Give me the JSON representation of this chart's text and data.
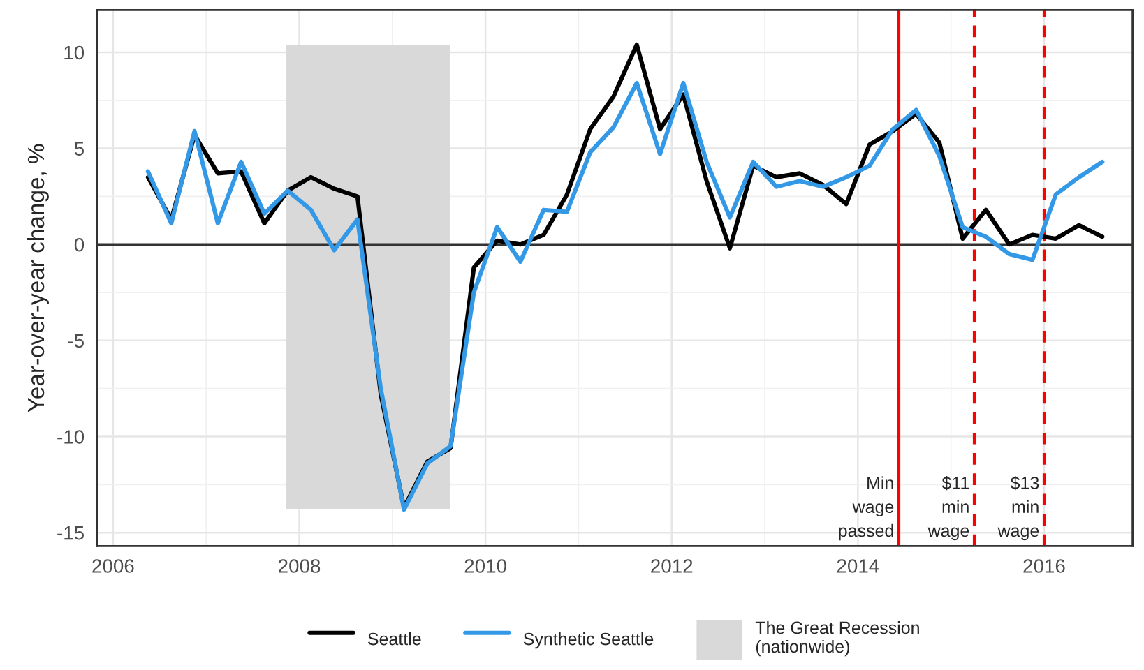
{
  "chart_data": {
    "type": "line",
    "ylabel": "Year-over-year change, %",
    "x": [
      2006.375,
      2006.625,
      2006.875,
      2007.125,
      2007.375,
      2007.625,
      2007.875,
      2008.125,
      2008.375,
      2008.625,
      2008.875,
      2009.125,
      2009.375,
      2009.625,
      2009.875,
      2010.125,
      2010.375,
      2010.625,
      2010.875,
      2011.125,
      2011.375,
      2011.625,
      2011.875,
      2012.125,
      2012.375,
      2012.625,
      2012.875,
      2013.125,
      2013.375,
      2013.625,
      2013.875,
      2014.125,
      2014.375,
      2014.625,
      2014.875,
      2015.125,
      2015.375,
      2015.625,
      2015.875,
      2016.125,
      2016.375,
      2016.625
    ],
    "series": [
      {
        "name": "Seattle",
        "color": "#000000",
        "values": [
          3.5,
          1.3,
          5.7,
          3.7,
          3.8,
          1.1,
          2.8,
          3.5,
          2.9,
          2.5,
          -7.8,
          -13.7,
          -11.3,
          -10.6,
          -1.2,
          0.2,
          0.0,
          0.5,
          2.6,
          6.0,
          7.7,
          10.4,
          6.0,
          7.8,
          3.3,
          -0.2,
          4.1,
          3.5,
          3.7,
          3.1,
          2.1,
          5.2,
          5.9,
          6.8,
          5.3,
          0.3,
          1.8,
          0.0,
          0.5,
          0.3,
          1.0,
          0.4
        ]
      },
      {
        "name": "Synthetic Seattle",
        "color": "#3399e6",
        "values": [
          3.8,
          1.1,
          5.9,
          1.1,
          4.3,
          1.6,
          2.8,
          1.8,
          -0.3,
          1.3,
          -7.5,
          -13.8,
          -11.4,
          -10.5,
          -2.5,
          0.9,
          -0.9,
          1.8,
          1.7,
          4.8,
          6.1,
          8.4,
          4.7,
          8.4,
          4.3,
          1.4,
          4.3,
          3.0,
          3.3,
          3.0,
          3.5,
          4.1,
          6.0,
          7.0,
          4.6,
          0.9,
          0.4,
          -0.5,
          -0.8,
          2.6,
          3.5,
          4.3
        ]
      }
    ],
    "xlim": [
      2005.83,
      2016.95
    ],
    "ylim": [
      -15.7,
      12.2
    ],
    "xticks": [
      2006,
      2008,
      2010,
      2012,
      2014,
      2016
    ],
    "yticks": [
      -15,
      -10,
      -5,
      0,
      5,
      10
    ],
    "bands": [
      {
        "axis": "x",
        "from": 2007.86,
        "to": 2009.62,
        "label": "The Great Recession\n(nationwide)",
        "color": "#d9d9d9"
      }
    ],
    "ref_lines": [
      {
        "axis": "y",
        "value": 0,
        "color": "#333333",
        "line_style": "solid"
      },
      {
        "axis": "x",
        "value": 2014.44,
        "label": "Min\nwage\npassed",
        "color": "#ff0000",
        "line_style": "solid"
      },
      {
        "axis": "x",
        "value": 2015.25,
        "label": "$11\nmin\nwage",
        "color": "#ff0000",
        "line_style": "dashed"
      },
      {
        "axis": "x",
        "value": 2016.0,
        "label": "$13\nmin\nwage",
        "color": "#ff0000",
        "line_style": "dashed"
      }
    ],
    "grid": true,
    "legend": "bottom",
    "line_style": "solid",
    "marker": "none"
  }
}
